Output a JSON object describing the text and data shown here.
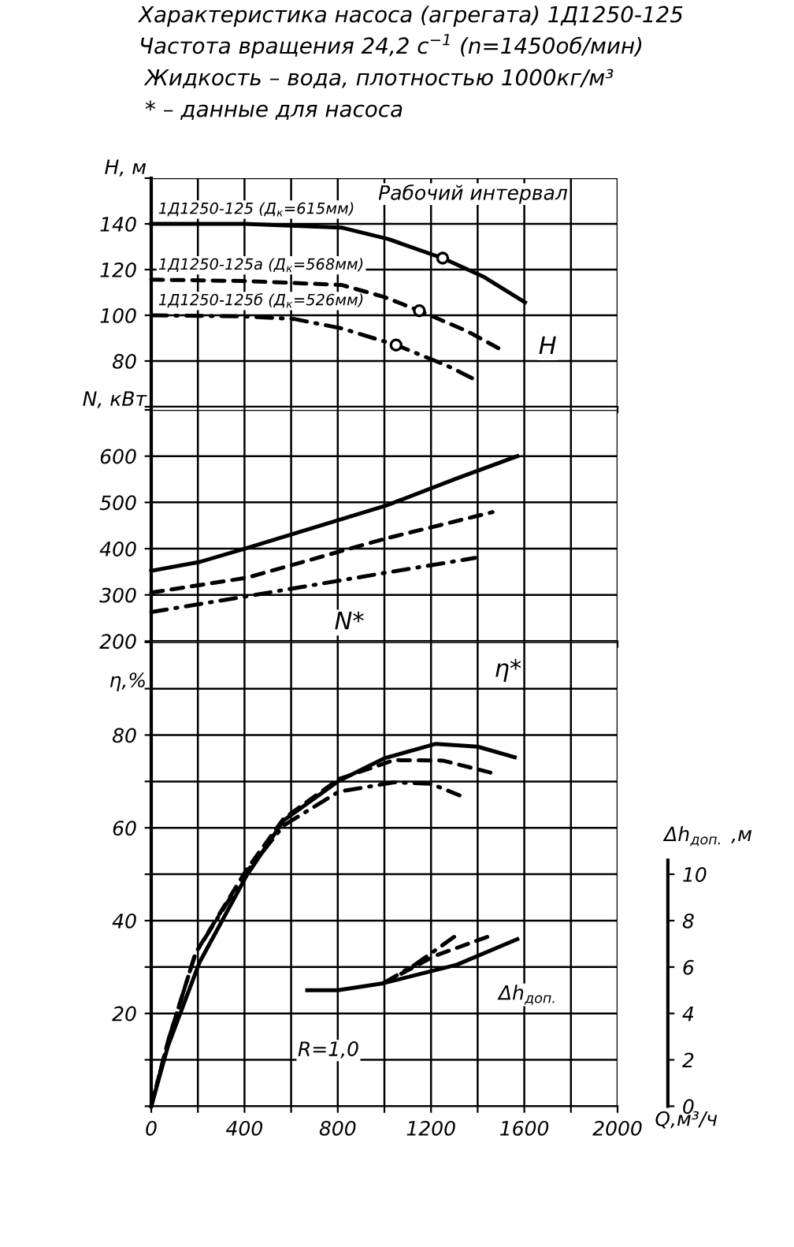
{
  "chart_data": [
    {
      "type": "line",
      "title": "Характеристика насоса (агрегата) 1Д1250-125",
      "subtitle": "Частота вращения 24,2 с$^{−1}$ (n=1450об/мин)",
      "annotations": [
        "Жидкость – вода, плотностью 1000кг/м³",
        "* – данные для насоса",
        "Рабочий интервал",
        "H"
      ],
      "ylabel": "H, м",
      "xlim": [
        0,
        2000
      ],
      "xticks": [
        0,
        {
          "value": 200,
          "label": null
        },
        400,
        {
          "value": 600,
          "label": null
        },
        800,
        {
          "value": 1000,
          "label": null
        },
        1200,
        {
          "value": 1400,
          "label": null
        },
        1600,
        {
          "value": 1800,
          "label": null
        },
        2000
      ],
      "ylim": [
        60,
        160
      ],
      "yticks": [
        {
          "value": 60,
          "label": null
        },
        80,
        100,
        120,
        140,
        {
          "value": 160,
          "label": null
        }
      ],
      "grid": true,
      "tick_labels": "y",
      "series": [
        {
          "name": "1Д1250-125 (Д$_{к}$=615мм)",
          "color": "#000000",
          "line_style": "solid",
          "x": [
            0,
            400,
            815,
            1018,
            1250,
            1423,
            1603
          ],
          "values": [
            140,
            140,
            138.4,
            133.3,
            125,
            117,
            105.7
          ]
        },
        {
          "name": "1Д1250-125а (Д$_{к}$=568мм)",
          "color": "#000000",
          "line_style": "dashed",
          "x": [
            0,
            400,
            815,
            1000,
            1150,
            1356,
            1491
          ],
          "values": [
            115.6,
            115,
            113.3,
            108,
            102,
            93,
            85.5
          ]
        },
        {
          "name": "1Д1250-125б (Д$_{к}$=526мм)",
          "color": "#000000",
          "line_style": "dashdot",
          "x": [
            0,
            400,
            613,
            815,
            1050,
            1266,
            1401
          ],
          "values": [
            100,
            99.5,
            98.4,
            94.3,
            87,
            78.1,
            71.2
          ]
        },
        {
          "type": "scatter",
          "marker": "circle",
          "color": "#000000",
          "x": [
            1250,
            1150,
            1050
          ],
          "values": [
            125,
            102,
            87
          ]
        }
      ]
    },
    {
      "type": "line",
      "ylabel": "N, кВт",
      "annotations": [
        "N*"
      ],
      "xlim": [
        0,
        2000
      ],
      "xticks": [
        0,
        {
          "value": 200,
          "label": null
        },
        400,
        {
          "value": 600,
          "label": null
        },
        800,
        {
          "value": 1000,
          "label": null
        },
        1200,
        {
          "value": 1400,
          "label": null
        },
        1600,
        {
          "value": 1800,
          "label": null
        },
        2000
      ],
      "ylim": [
        200,
        700
      ],
      "yticks": [
        200,
        300,
        400,
        500,
        600,
        {
          "value": 700,
          "label": null
        }
      ],
      "grid": true,
      "tick_labels": "y",
      "series": [
        {
          "color": "#000000",
          "line_style": "solid",
          "x": [
            0,
            206,
            409,
            1007,
            1311,
            1570
          ],
          "values": [
            352,
            371,
            401,
            493,
            552,
            600
          ]
        },
        {
          "color": "#000000",
          "line_style": "dashed",
          "x": [
            0,
            409,
            1007,
            1464
          ],
          "values": [
            305,
            337,
            422,
            479
          ]
        },
        {
          "color": "#000000",
          "line_style": "dashdot",
          "x": [
            0,
            409,
            1007,
            1389
          ],
          "values": [
            263,
            297,
            348,
            380
          ]
        }
      ]
    },
    {
      "type": "line",
      "ylabel": "η,%",
      "xlabel": "Q,м³/ч",
      "y2label": "Δh$_{доп.}$ ,м",
      "annotations": [
        "η*",
        "Δh$_{доп.}$",
        "R=1,0"
      ],
      "xlim": [
        0,
        2000
      ],
      "xticks": [
        0,
        {
          "value": 200,
          "label": null
        },
        400,
        {
          "value": 600,
          "label": null
        },
        800,
        {
          "value": 1000,
          "label": null
        },
        1200,
        {
          "value": 1400,
          "label": null
        },
        1600,
        {
          "value": 1800,
          "label": null
        },
        2000
      ],
      "ylim": [
        0,
        100
      ],
      "yticks": [
        {
          "value": 0,
          "label": null
        },
        {
          "value": 10,
          "label": null
        },
        20,
        {
          "value": 30,
          "label": null
        },
        40,
        {
          "value": 50,
          "label": null
        },
        60,
        {
          "value": 70,
          "label": null
        },
        80,
        {
          "value": 90,
          "label": null
        },
        {
          "value": 100,
          "label": null
        }
      ],
      "y2lim": [
        0,
        20
      ],
      "y2ticks": [
        0,
        2,
        4,
        6,
        8,
        10
      ],
      "grid": true,
      "series": [
        {
          "color": "#000000",
          "line_style": "solid",
          "x": [
            0,
            72,
            207,
            409,
            568,
            804,
            1000,
            1221,
            1400,
            1559
          ],
          "values": [
            0,
            13,
            31,
            49.7,
            61.6,
            70.1,
            75,
            78.1,
            77.5,
            75.2
          ]
        },
        {
          "color": "#000000",
          "line_style": "dashed",
          "x": [
            0,
            72,
            190,
            409,
            568,
            804,
            1041,
            1250,
            1480
          ],
          "values": [
            0,
            14,
            33,
            51,
            62,
            70.5,
            74.6,
            74.5,
            71.6
          ]
        },
        {
          "color": "#000000",
          "line_style": "dashdot",
          "x": [
            0,
            72,
            190,
            409,
            568,
            804,
            1041,
            1200,
            1322
          ],
          "values": [
            0,
            14,
            33,
            50.5,
            60.5,
            67.8,
            69.8,
            69.5,
            67
          ]
        },
        {
          "axis": "y2",
          "color": "#000000",
          "line_style": "solid",
          "x": [
            669,
            800,
            995,
            1311,
            1570
          ],
          "values": [
            5,
            5,
            5.3,
            6.1,
            7.2
          ]
        },
        {
          "axis": "y2",
          "color": "#000000",
          "line_style": "dashed",
          "x": [
            995,
            1221,
            1469
          ],
          "values": [
            5.3,
            6.5,
            7.4
          ]
        },
        {
          "axis": "y2",
          "color": "#000000",
          "line_style": "dashdot",
          "x": [
            995,
            1131,
            1299
          ],
          "values": [
            5.3,
            6.1,
            7.3
          ]
        }
      ]
    }
  ]
}
